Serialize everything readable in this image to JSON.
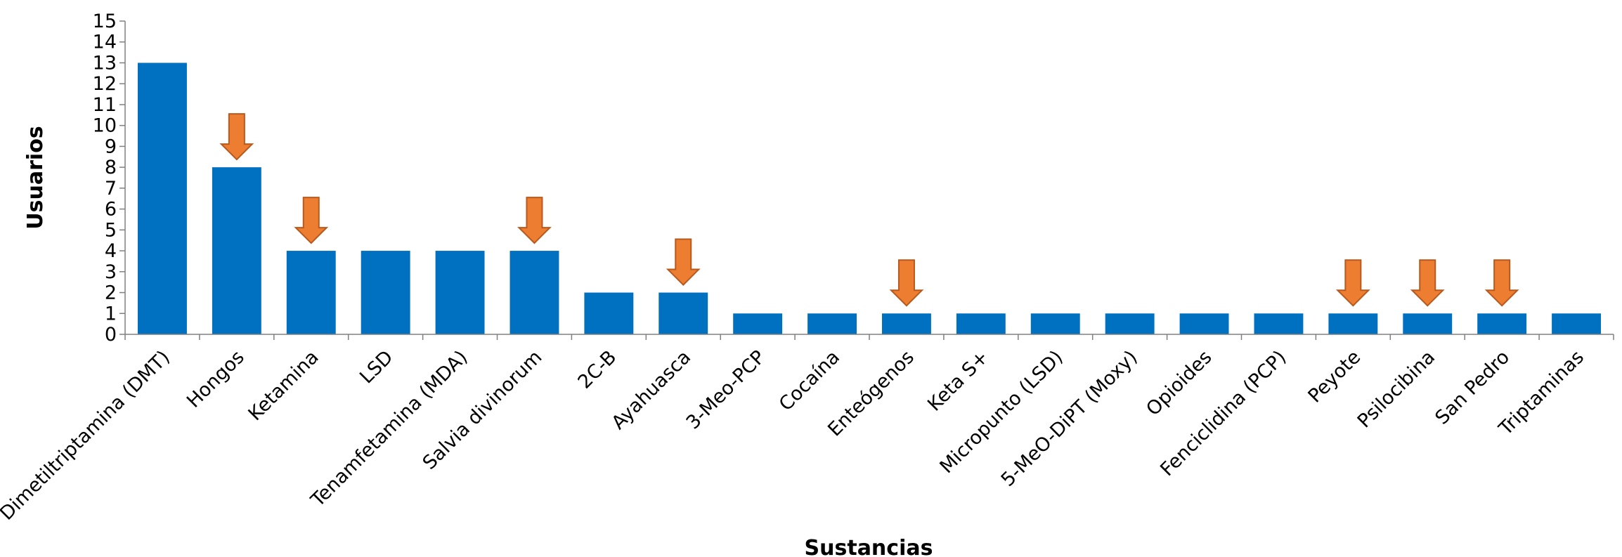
{
  "chart_data": {
    "type": "bar",
    "title": "",
    "xlabel": "Sustancias",
    "ylabel": "Usuarios",
    "ylim": [
      0,
      15
    ],
    "yticks": [
      0,
      1,
      2,
      3,
      4,
      5,
      6,
      7,
      8,
      9,
      10,
      11,
      12,
      13,
      14,
      15
    ],
    "grid": false,
    "legend": "none",
    "categories": [
      "Dimetiltriptamina (DMT)",
      "Hongos",
      "Ketamina",
      "LSD",
      "Tenamfetamina (MDA)",
      "Salvia divinorum",
      "2C-B",
      "Ayahuasca",
      "3-Meo-PCP",
      "Cocaína",
      "Enteógenos",
      "Keta S+",
      "Micropunto (LSD)",
      "5-MeO-DiPT (Moxy)",
      "Opioides",
      "Fenciclidina (PCP)",
      "Peyote",
      "Psilocibina",
      "San Pedro",
      "Triptaminas"
    ],
    "values": [
      13,
      8,
      4,
      4,
      4,
      4,
      2,
      2,
      1,
      1,
      1,
      1,
      1,
      1,
      1,
      1,
      1,
      1,
      1,
      1
    ],
    "highlighted": [
      "Hongos",
      "Ketamina",
      "Salvia divinorum",
      "Ayahuasca",
      "Enteógenos",
      "Peyote",
      "Psilocibina",
      "San Pedro"
    ],
    "colors": {
      "bar": "#0070C0",
      "arrow_fill": "#ED7D31",
      "arrow_stroke": "#B85A1E",
      "axis": "#808080"
    }
  }
}
